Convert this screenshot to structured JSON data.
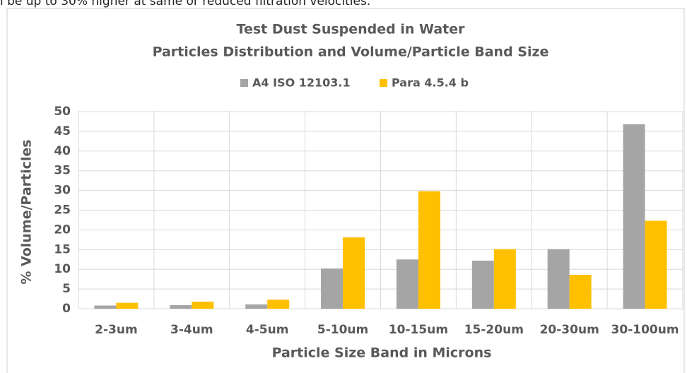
{
  "caption": "l be up to 30% higher at same or reduced filtration velocities.",
  "chart_data": {
    "type": "bar",
    "title": "Test Dust Suspended in Water",
    "subtitle": "Particles Distribution and Volume/Particle Band Size",
    "x_label": "Particle Size Band in Microns",
    "y_label": "% Volume/Particles",
    "categories": [
      "2-3um",
      "3-4um",
      "4-5um",
      "5-10um",
      "10-15um",
      "15-20um",
      "20-30um",
      "30-100um"
    ],
    "series": [
      {
        "name": "A4 ISO 12103.1",
        "color": "#a5a5a5",
        "values": [
          0.8,
          0.9,
          1.1,
          10.2,
          12.5,
          12.2,
          15.1,
          46.8
        ]
      },
      {
        "name": "Para 4.5.4 b",
        "color": "#ffc000",
        "values": [
          1.5,
          1.8,
          2.3,
          18.1,
          29.8,
          15.1,
          8.6,
          22.3
        ]
      }
    ],
    "ylim": [
      0,
      50
    ],
    "yticks": [
      0,
      5,
      10,
      15,
      20,
      25,
      30,
      35,
      40,
      45,
      50
    ],
    "grid": true,
    "legend": "top"
  }
}
